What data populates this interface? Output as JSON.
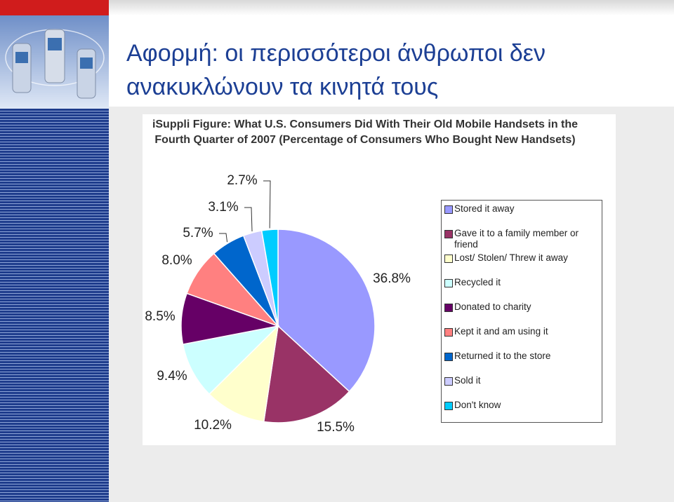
{
  "slide_title": "Αφορμή: οι περισσότεροι άνθρωποι δεν ανακυκλώνουν τα κινητά τους",
  "chart_data": {
    "type": "pie",
    "title": "iSuppli Figure: What U.S. Consumers Did With Their Old Mobile Handsets in the Fourth Quarter of 2007 (Percentage of Consumers Who Bought New Handsets)",
    "categories": [
      "Stored it away",
      "Gave it to a family member or friend",
      "Lost/ Stolen/ Threw it away",
      "Recycled it",
      "Donated to charity",
      "Kept it and am using it",
      "Returned it to the store",
      "Sold it",
      "Don't know"
    ],
    "values": [
      36.8,
      15.5,
      10.2,
      9.4,
      8.5,
      8.0,
      5.7,
      3.1,
      2.7
    ],
    "value_labels": [
      "36.8%",
      "15.5%",
      "10.2%",
      "9.4%",
      "8.5%",
      "8.0%",
      "5.7%",
      "3.1%",
      "2.7%"
    ],
    "colors": [
      "#9999ff",
      "#993366",
      "#ffffcc",
      "#ccffff",
      "#660066",
      "#ff8080",
      "#0066cc",
      "#ccccff",
      "#00ccff"
    ],
    "legend": "right"
  }
}
